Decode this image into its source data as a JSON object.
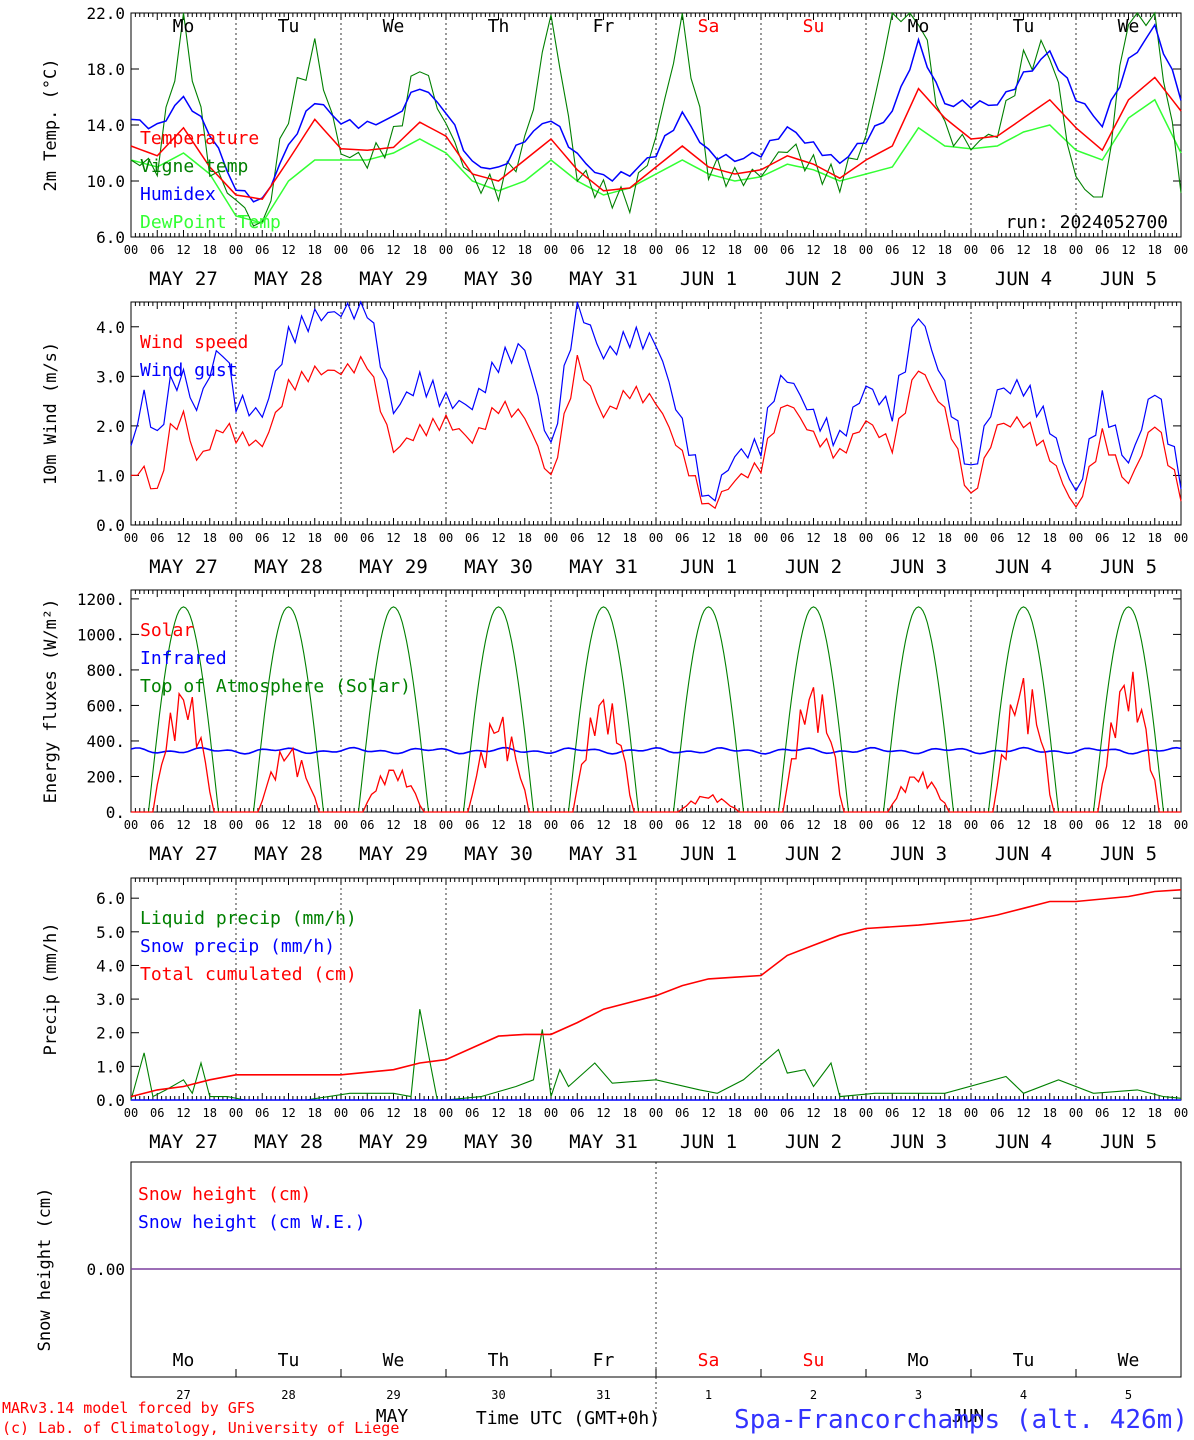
{
  "station_title": "Spa-Francorchamps (alt. 426m)",
  "run_label": "run: 2024052700",
  "footer": {
    "line1": "MARv3.14 model forced by GFS",
    "line2": "(c) Lab. of Climatology, University of Liege",
    "month": "MAY",
    "month2": "JUN",
    "time_axis": "Time UTC (GMT+0h)"
  },
  "hour_ticks": [
    "00",
    "06",
    "12",
    "18"
  ],
  "date_labels": [
    "MAY 27",
    "MAY 28",
    "MAY 29",
    "MAY 30",
    "MAY 31",
    "JUN  1",
    "JUN  2",
    "JUN  3",
    "JUN  4",
    "JUN  5"
  ],
  "weekdays": [
    "Mo",
    "Tu",
    "We",
    "Th",
    "Fr",
    "Sa",
    "Su",
    "Mo",
    "Tu",
    "We"
  ],
  "day_numbers": [
    "27",
    "28",
    "29",
    "30",
    "31",
    "1",
    "2",
    "3",
    "4",
    "5"
  ],
  "colors": {
    "red": "#ff0000",
    "green": "#008000",
    "blue": "#0000ff",
    "lightgreen": "#33ff33",
    "weekend": "#ff0000",
    "purple": "#7b3f9e"
  },
  "chart_data": [
    {
      "type": "line",
      "ylabel": "2m Temp. (°C)",
      "ylim": [
        6,
        22
      ],
      "yticks": [
        "6.0",
        "10.0",
        "14.0",
        "18.0",
        "22.0"
      ],
      "x_unit": "hours since MAY 27 00 UTC",
      "series": [
        {
          "name": "Temperature",
          "color": "#ff0000",
          "x": [
            0,
            6,
            12,
            18,
            24,
            30,
            36,
            42,
            48,
            54,
            60,
            66,
            72,
            78,
            84,
            90,
            96,
            102,
            108,
            114,
            120,
            126,
            132,
            138,
            144,
            150,
            156,
            162,
            168,
            174,
            180,
            186,
            192,
            198,
            204,
            210,
            216,
            222,
            228,
            234,
            240
          ],
          "values": [
            12.5,
            11.8,
            13.8,
            11.0,
            9.0,
            8.7,
            11.5,
            14.4,
            12.3,
            12.2,
            12.4,
            14.2,
            13.2,
            10.5,
            10.0,
            11.5,
            13.0,
            10.8,
            9.3,
            9.5,
            11.0,
            12.5,
            11.0,
            10.5,
            10.8,
            11.8,
            11.2,
            10.2,
            11.5,
            12.5,
            16.6,
            14.5,
            13.0,
            13.2,
            14.5,
            15.8,
            13.8,
            12.2,
            15.8,
            17.4,
            15.0
          ]
        },
        {
          "name": "Vigne temp",
          "color": "#008000",
          "x": [
            0,
            6,
            12,
            18,
            24,
            30,
            36,
            42,
            48,
            54,
            60,
            66,
            72,
            78,
            84,
            90,
            96,
            102,
            108,
            114,
            120,
            126,
            132,
            138,
            144,
            150,
            156,
            162,
            168,
            174,
            180,
            186,
            192,
            198,
            204,
            210,
            216,
            222,
            228,
            234,
            240
          ],
          "values": [
            11.5,
            11.0,
            21.5,
            11.0,
            8.6,
            6.5,
            15.0,
            19.5,
            12.0,
            11.5,
            13.0,
            18.5,
            14.0,
            10.0,
            9.5,
            12.5,
            22.0,
            10.5,
            9.2,
            8.5,
            13.0,
            21.5,
            11.0,
            10.2,
            10.5,
            12.5,
            11.0,
            10.0,
            13.0,
            22.0,
            22.0,
            13.5,
            12.5,
            13.5,
            18.5,
            19.5,
            10.0,
            8.5,
            22.0,
            22.0,
            9.5
          ]
        },
        {
          "name": "Humidex",
          "color": "#0000ff",
          "x": [
            0,
            6,
            12,
            18,
            24,
            30,
            36,
            42,
            48,
            54,
            60,
            66,
            72,
            78,
            84,
            90,
            96,
            102,
            108,
            114,
            120,
            126,
            132,
            138,
            144,
            150,
            156,
            162,
            168,
            174,
            180,
            186,
            192,
            198,
            204,
            210,
            216,
            222,
            228,
            234,
            240
          ],
          "values": [
            14.4,
            13.8,
            16.0,
            13.5,
            9.4,
            8.5,
            12.5,
            15.8,
            14.2,
            14.0,
            14.5,
            16.8,
            15.0,
            11.2,
            10.8,
            13.0,
            14.5,
            11.8,
            10.2,
            10.5,
            12.0,
            14.8,
            12.0,
            11.5,
            12.0,
            13.8,
            12.5,
            11.3,
            13.0,
            15.0,
            19.8,
            15.5,
            15.5,
            15.5,
            17.5,
            19.2,
            16.0,
            14.0,
            18.5,
            21.0,
            16.0
          ]
        },
        {
          "name": "DewPoint Temp",
          "color": "#33ff33",
          "x": [
            0,
            6,
            12,
            18,
            24,
            30,
            36,
            42,
            48,
            54,
            60,
            66,
            72,
            78,
            84,
            90,
            96,
            102,
            108,
            114,
            120,
            126,
            132,
            138,
            144,
            150,
            156,
            162,
            168,
            174,
            180,
            186,
            192,
            198,
            204,
            210,
            216,
            222,
            228,
            234,
            240
          ],
          "values": [
            11.5,
            11.0,
            12.0,
            10.5,
            7.5,
            7.0,
            10.0,
            11.5,
            11.5,
            11.5,
            12.0,
            13.0,
            12.0,
            10.0,
            9.3,
            10.0,
            11.5,
            10.0,
            9.0,
            9.5,
            10.5,
            11.5,
            10.5,
            10.0,
            10.3,
            11.2,
            10.8,
            10.0,
            10.5,
            11.0,
            13.8,
            12.5,
            12.3,
            12.5,
            13.5,
            14.0,
            12.2,
            11.5,
            14.5,
            15.8,
            12.0
          ]
        }
      ]
    },
    {
      "type": "line",
      "ylabel": "10m Wind (m/s)",
      "ylim": [
        0,
        4.5
      ],
      "yticks": [
        "0.0",
        "1.0",
        "2.0",
        "3.0",
        "4.0"
      ],
      "series": [
        {
          "name": "Wind speed",
          "color": "#ff0000",
          "x": [
            0,
            3,
            6,
            9,
            12,
            15,
            18,
            21,
            24,
            30,
            36,
            42,
            48,
            54,
            60,
            66,
            72,
            78,
            84,
            90,
            96,
            102,
            108,
            114,
            120,
            126,
            132,
            138,
            144,
            147,
            150,
            156,
            162,
            168,
            174,
            180,
            186,
            192,
            198,
            204,
            210,
            216,
            222,
            228,
            234,
            240
          ],
          "values": [
            1.0,
            1.1,
            0.6,
            1.9,
            2.2,
            1.3,
            1.6,
            2.0,
            1.8,
            1.6,
            2.8,
            3.1,
            3.1,
            3.3,
            1.5,
            1.9,
            2.1,
            1.7,
            2.4,
            2.2,
            0.9,
            3.3,
            2.2,
            2.7,
            2.5,
            1.4,
            0.3,
            0.9,
            1.2,
            2.0,
            2.5,
            1.8,
            1.4,
            2.1,
            1.6,
            3.2,
            2.3,
            0.5,
            2.0,
            2.1,
            1.4,
            0.3,
            1.8,
            0.8,
            2.1,
            0.6
          ]
        },
        {
          "name": "Wind gust",
          "color": "#0000ff",
          "x": [
            0,
            3,
            6,
            9,
            12,
            15,
            18,
            21,
            24,
            30,
            36,
            42,
            48,
            54,
            60,
            66,
            72,
            78,
            84,
            90,
            96,
            102,
            108,
            114,
            120,
            126,
            132,
            138,
            144,
            147,
            150,
            156,
            162,
            168,
            174,
            180,
            186,
            192,
            198,
            204,
            210,
            216,
            222,
            228,
            234,
            240
          ],
          "values": [
            1.6,
            2.6,
            1.7,
            2.8,
            3.0,
            2.3,
            3.1,
            3.6,
            2.5,
            2.2,
            3.8,
            4.2,
            4.3,
            4.4,
            2.3,
            2.9,
            2.5,
            2.4,
            3.3,
            3.6,
            1.5,
            4.5,
            3.4,
            3.8,
            3.7,
            2.0,
            0.4,
            1.4,
            1.6,
            2.7,
            3.0,
            2.2,
            1.7,
            2.8,
            2.3,
            4.3,
            2.8,
            1.0,
            2.7,
            2.8,
            2.0,
            0.6,
            2.5,
            1.2,
            2.8,
            0.9
          ]
        }
      ]
    },
    {
      "type": "line",
      "ylabel": "Energy fluxes (W/m²)",
      "ylim": [
        0,
        1250
      ],
      "yticks": [
        "0.",
        "200.",
        "400.",
        "600.",
        "800.",
        "1000.",
        "1200."
      ],
      "series": [
        {
          "name": "Solar",
          "color": "#ff0000",
          "peaks": [
            720,
            380,
            260,
            560,
            680,
            100,
            740,
            230,
            780,
            810
          ]
        },
        {
          "name": "Infrared",
          "color": "#0000ff",
          "level": 345
        },
        {
          "name": "Top of Atmosphere (Solar)",
          "color": "#008000",
          "peak": 1155
        }
      ]
    },
    {
      "type": "line",
      "ylabel": "Precip (mm/h)",
      "ylim": [
        0,
        6.6
      ],
      "yticks": [
        "0.0",
        "1.0",
        "2.0",
        "3.0",
        "4.0",
        "5.0",
        "6.0"
      ],
      "series": [
        {
          "name": "Liquid precip (mm/h)",
          "color": "#008000",
          "x": [
            0,
            3,
            5,
            8,
            12,
            14,
            16,
            18,
            22,
            26,
            40,
            50,
            60,
            64,
            66,
            70,
            72,
            80,
            88,
            92,
            94,
            96,
            98,
            100,
            106,
            110,
            120,
            130,
            134,
            140,
            148,
            150,
            154,
            156,
            160,
            162,
            170,
            186,
            200,
            204,
            212,
            220,
            230,
            236,
            240
          ],
          "values": [
            0,
            1.4,
            0.1,
            0.3,
            0.6,
            0.2,
            1.1,
            0.1,
            0.1,
            0,
            0,
            0.2,
            0.2,
            0.1,
            2.7,
            0,
            0,
            0.1,
            0.4,
            0.6,
            2.1,
            0.1,
            0.9,
            0.4,
            1.1,
            0.5,
            0.6,
            0.3,
            0.2,
            0.6,
            1.5,
            0.8,
            0.9,
            0.4,
            1.1,
            0.1,
            0.2,
            0.2,
            0.7,
            0.2,
            0.6,
            0.2,
            0.3,
            0.1,
            0.05
          ]
        },
        {
          "name": "Snow precip (mm/h)",
          "color": "#0000ff",
          "values": [
            0
          ]
        },
        {
          "name": "Total cumulated (cm)",
          "color": "#ff0000",
          "x": [
            0,
            6,
            12,
            18,
            24,
            48,
            60,
            66,
            72,
            84,
            90,
            96,
            102,
            108,
            120,
            126,
            132,
            138,
            144,
            150,
            156,
            162,
            168,
            180,
            192,
            198,
            204,
            210,
            216,
            228,
            234,
            240
          ],
          "values": [
            0.1,
            0.3,
            0.4,
            0.6,
            0.75,
            0.75,
            0.9,
            1.1,
            1.2,
            1.9,
            1.95,
            1.95,
            2.3,
            2.7,
            3.1,
            3.4,
            3.6,
            3.65,
            3.7,
            4.3,
            4.6,
            4.9,
            5.1,
            5.2,
            5.35,
            5.5,
            5.7,
            5.9,
            5.9,
            6.05,
            6.2,
            6.25
          ]
        }
      ]
    },
    {
      "type": "line",
      "ylabel": "Snow height (cm)",
      "yticks": [
        "0.00"
      ],
      "series": [
        {
          "name": "Snow height (cm)",
          "color": "#ff0000",
          "values": [
            0
          ]
        },
        {
          "name": "Snow height (cm W.E.)",
          "color": "#0000ff",
          "values": [
            0
          ]
        }
      ]
    }
  ]
}
